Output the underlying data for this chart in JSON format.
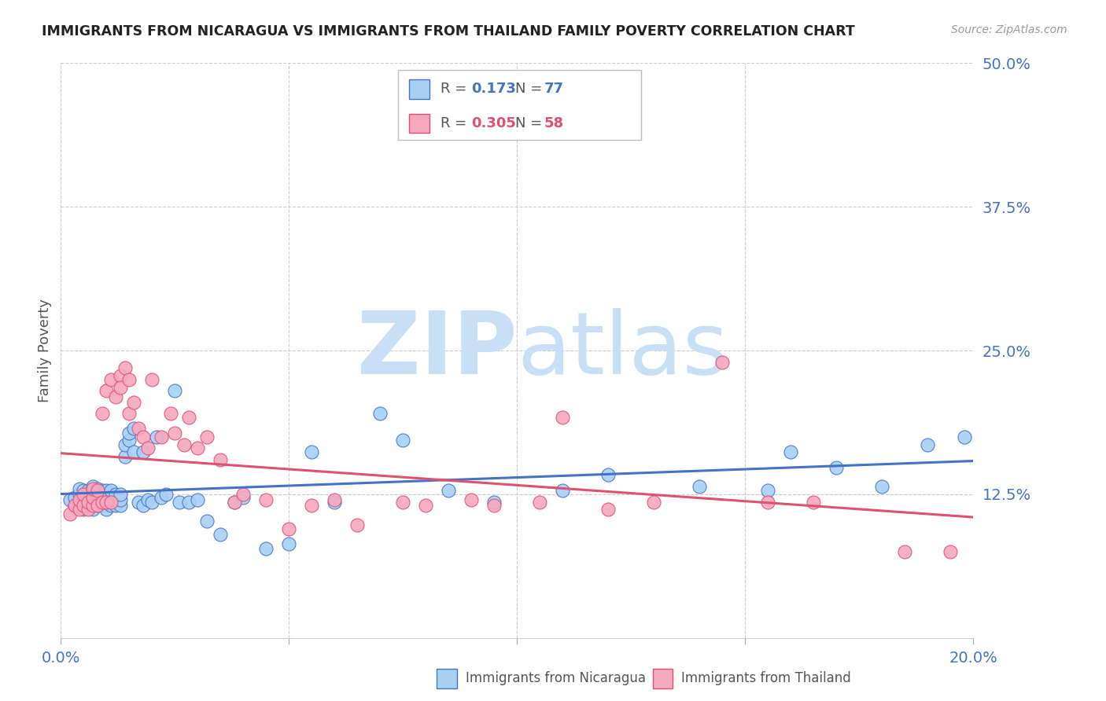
{
  "title": "IMMIGRANTS FROM NICARAGUA VS IMMIGRANTS FROM THAILAND FAMILY POVERTY CORRELATION CHART",
  "source": "Source: ZipAtlas.com",
  "ylabel": "Family Poverty",
  "right_yticks": [
    "50.0%",
    "37.5%",
    "25.0%",
    "12.5%"
  ],
  "right_ytick_vals": [
    0.5,
    0.375,
    0.25,
    0.125
  ],
  "R_nicaragua": 0.173,
  "N_nicaragua": 77,
  "R_thailand": 0.305,
  "N_thailand": 58,
  "color_nicaragua": "#A8D0F5",
  "color_thailand": "#F5A8C0",
  "line_color_nicaragua": "#4472C4",
  "line_color_thailand": "#E05070",
  "background_color": "#FFFFFF",
  "xlim": [
    0.0,
    0.2
  ],
  "ylim": [
    0.0,
    0.5
  ],
  "scatter_nicaragua_x": [
    0.002,
    0.003,
    0.003,
    0.004,
    0.004,
    0.004,
    0.005,
    0.005,
    0.005,
    0.005,
    0.006,
    0.006,
    0.006,
    0.006,
    0.007,
    0.007,
    0.007,
    0.007,
    0.008,
    0.008,
    0.008,
    0.008,
    0.009,
    0.009,
    0.009,
    0.01,
    0.01,
    0.01,
    0.01,
    0.011,
    0.011,
    0.011,
    0.012,
    0.012,
    0.012,
    0.013,
    0.013,
    0.013,
    0.014,
    0.014,
    0.015,
    0.015,
    0.016,
    0.016,
    0.017,
    0.018,
    0.018,
    0.019,
    0.02,
    0.021,
    0.022,
    0.023,
    0.025,
    0.026,
    0.028,
    0.03,
    0.032,
    0.035,
    0.038,
    0.04,
    0.045,
    0.05,
    0.055,
    0.06,
    0.07,
    0.075,
    0.085,
    0.095,
    0.11,
    0.12,
    0.14,
    0.155,
    0.16,
    0.17,
    0.18,
    0.19,
    0.198
  ],
  "scatter_nicaragua_y": [
    0.12,
    0.115,
    0.122,
    0.118,
    0.125,
    0.13,
    0.112,
    0.118,
    0.122,
    0.128,
    0.115,
    0.118,
    0.122,
    0.128,
    0.112,
    0.118,
    0.125,
    0.132,
    0.115,
    0.118,
    0.122,
    0.13,
    0.115,
    0.12,
    0.128,
    0.112,
    0.118,
    0.122,
    0.128,
    0.115,
    0.12,
    0.128,
    0.115,
    0.12,
    0.125,
    0.115,
    0.12,
    0.125,
    0.158,
    0.168,
    0.172,
    0.178,
    0.182,
    0.162,
    0.118,
    0.115,
    0.162,
    0.12,
    0.118,
    0.175,
    0.122,
    0.125,
    0.215,
    0.118,
    0.118,
    0.12,
    0.102,
    0.09,
    0.118,
    0.122,
    0.078,
    0.082,
    0.162,
    0.118,
    0.195,
    0.172,
    0.128,
    0.118,
    0.128,
    0.142,
    0.132,
    0.128,
    0.162,
    0.148,
    0.132,
    0.168,
    0.175
  ],
  "scatter_thailand_x": [
    0.002,
    0.003,
    0.004,
    0.004,
    0.005,
    0.005,
    0.006,
    0.006,
    0.007,
    0.007,
    0.007,
    0.008,
    0.008,
    0.009,
    0.009,
    0.01,
    0.01,
    0.011,
    0.011,
    0.012,
    0.013,
    0.013,
    0.014,
    0.015,
    0.015,
    0.016,
    0.017,
    0.018,
    0.019,
    0.02,
    0.022,
    0.024,
    0.025,
    0.027,
    0.028,
    0.03,
    0.032,
    0.035,
    0.038,
    0.04,
    0.045,
    0.05,
    0.055,
    0.06,
    0.065,
    0.075,
    0.08,
    0.09,
    0.095,
    0.105,
    0.11,
    0.12,
    0.13,
    0.145,
    0.155,
    0.165,
    0.185,
    0.195
  ],
  "scatter_thailand_y": [
    0.108,
    0.115,
    0.112,
    0.12,
    0.115,
    0.125,
    0.112,
    0.118,
    0.115,
    0.122,
    0.13,
    0.115,
    0.128,
    0.118,
    0.195,
    0.118,
    0.215,
    0.225,
    0.118,
    0.21,
    0.228,
    0.218,
    0.235,
    0.225,
    0.195,
    0.205,
    0.182,
    0.175,
    0.165,
    0.225,
    0.175,
    0.195,
    0.178,
    0.168,
    0.192,
    0.165,
    0.175,
    0.155,
    0.118,
    0.125,
    0.12,
    0.095,
    0.115,
    0.12,
    0.098,
    0.118,
    0.115,
    0.12,
    0.115,
    0.118,
    0.192,
    0.112,
    0.118,
    0.24,
    0.118,
    0.118,
    0.075,
    0.075
  ]
}
